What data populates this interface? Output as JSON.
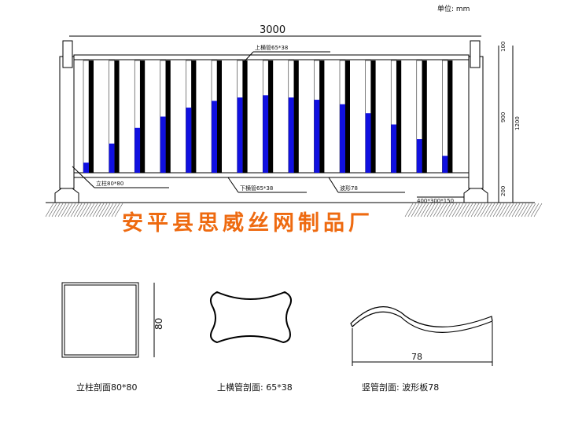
{
  "unit_label": "单位: mm",
  "dimensions": {
    "width": "3000",
    "top": "100",
    "middle": "900",
    "total": "1200",
    "bottom": "200",
    "profile_square": "80",
    "profile_wave": "78"
  },
  "callouts": {
    "post": "立柱80*80",
    "top_rail": "上横管65*38",
    "bottom_rail": "下横管65*38",
    "wave": "波形78",
    "base": "400*300*150"
  },
  "company": "安平县思威丝网制品厂",
  "captions": {
    "post_section": "立柱剖面80*80",
    "rail_section": "上横管剖面: 65*38",
    "bar_section": "竖管剖面: 波形板78"
  },
  "colors": {
    "blue": "#1010e0",
    "black": "#000000",
    "company": "#ee6a10"
  },
  "blue_fill_fractions": [
    0.09,
    0.26,
    0.4,
    0.5,
    0.58,
    0.64,
    0.67,
    0.69,
    0.67,
    0.65,
    0.61,
    0.53,
    0.43,
    0.3,
    0.15
  ]
}
